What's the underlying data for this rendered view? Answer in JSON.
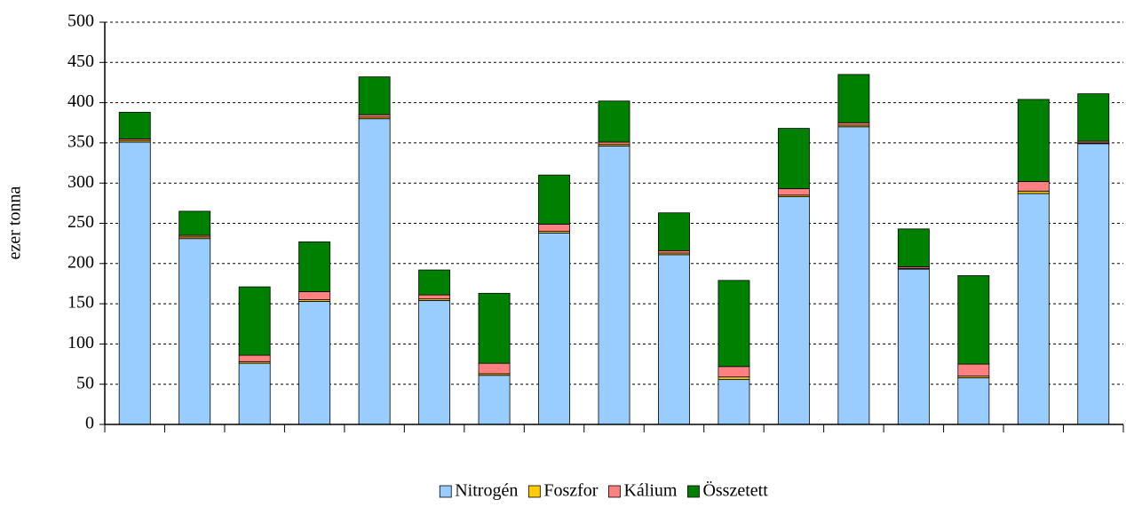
{
  "chart_data": {
    "type": "stacked_bar",
    "y_label": "ezer tonna",
    "categories": [
      null,
      null,
      null,
      null,
      null,
      null,
      null,
      null,
      null,
      null,
      null,
      null,
      null,
      null,
      null,
      null,
      null
    ],
    "series": [
      {
        "name": "Nitrogén",
        "color": "#99ccff",
        "values": [
          351,
          231,
          76,
          153,
          380,
          154,
          61,
          238,
          346,
          211,
          56,
          283,
          370,
          193,
          58,
          287,
          349
        ]
      },
      {
        "name": "Foszfor",
        "color": "#ffcc00",
        "values": [
          2,
          2,
          2,
          2,
          2,
          2,
          2,
          2,
          2,
          2,
          3,
          2,
          2,
          1,
          2,
          3,
          1
        ]
      },
      {
        "name": "Kálium",
        "color": "#ff8080",
        "values": [
          2,
          2,
          8,
          10,
          3,
          5,
          13,
          9,
          3,
          3,
          13,
          8,
          3,
          2,
          15,
          12,
          2
        ]
      },
      {
        "name": "Összetett",
        "color": "#008000",
        "values": [
          33,
          30,
          85,
          62,
          47,
          31,
          87,
          61,
          51,
          47,
          107,
          75,
          60,
          47,
          110,
          102,
          59
        ]
      }
    ],
    "ylim": [
      0,
      500
    ],
    "yticks": [
      0,
      50,
      100,
      150,
      200,
      250,
      300,
      350,
      400,
      450,
      500
    ],
    "grid": true,
    "legend": "bottom"
  }
}
